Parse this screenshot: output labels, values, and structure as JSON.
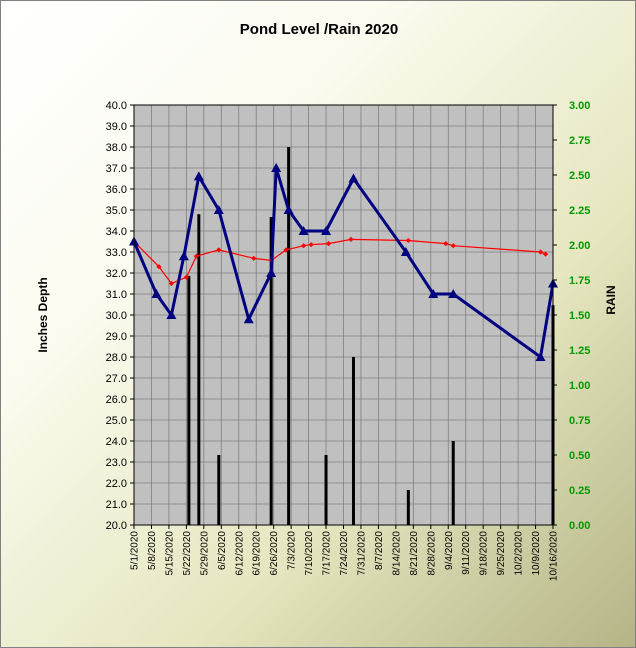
{
  "chart_data": {
    "type": "line",
    "title": "Pond Level /Rain 2020",
    "ylabel": "Inches Depth",
    "y2label": "RAIN",
    "ylim": [
      20.0,
      40.0
    ],
    "y2lim": [
      0.0,
      3.0
    ],
    "grid": true,
    "x_tick_labels": [
      "5/1/2020",
      "5/8/2020",
      "5/15/2020",
      "5/22/2020",
      "5/29/2020",
      "6/5/2020",
      "6/12/2020",
      "6/19/2020",
      "6/26/2020",
      "7/3/2020",
      "7/10/2020",
      "7/17/2020",
      "7/24/2020",
      "7/31/2020",
      "8/7/2020",
      "8/14/2020",
      "8/21/2020",
      "8/28/2020",
      "9/4/2020",
      "9/11/2020",
      "9/18/2020",
      "9/25/2020",
      "10/2/2020",
      "10/9/2020",
      "10/16/2020"
    ],
    "y_tick_labels": [
      "20.0",
      "21.0",
      "22.0",
      "23.0",
      "24.0",
      "25.0",
      "26.0",
      "27.0",
      "28.0",
      "29.0",
      "30.0",
      "31.0",
      "32.0",
      "33.0",
      "34.0",
      "35.0",
      "36.0",
      "37.0",
      "38.0",
      "39.0",
      "40.0"
    ],
    "y2_tick_labels": [
      "0.00",
      "0.25",
      "0.50",
      "0.75",
      "1.00",
      "1.25",
      "1.50",
      "1.75",
      "2.00",
      "2.25",
      "2.50",
      "2.75",
      "3.00"
    ],
    "colors": {
      "plot_bg": "#c0c0c0",
      "grid": "#7f7f7f",
      "pond_level": "#000080",
      "trend": "#ff0000",
      "rain": "#000000",
      "right_axis": "#009900"
    },
    "series": [
      {
        "kind": "line-triangle",
        "color": "#000080",
        "x": [
          "2020-05-01",
          "2020-05-10",
          "2020-05-16",
          "2020-05-21",
          "2020-05-27",
          "2020-06-04",
          "2020-06-16",
          "2020-06-25",
          "2020-06-27",
          "2020-07-02",
          "2020-07-08",
          "2020-07-17",
          "2020-07-28",
          "2020-08-18",
          "2020-08-29",
          "2020-09-06",
          "2020-10-11",
          "2020-10-16"
        ],
        "y": [
          33.5,
          31.0,
          30.0,
          32.8,
          36.6,
          35.0,
          29.8,
          32.0,
          37.0,
          35.0,
          34.0,
          34.0,
          36.5,
          33.0,
          31.0,
          31.0,
          28.0,
          31.5
        ]
      },
      {
        "kind": "line-diamond",
        "color": "#ff0000",
        "x": [
          "2020-05-01",
          "2020-05-11",
          "2020-05-16",
          "2020-05-22",
          "2020-05-26",
          "2020-06-04",
          "2020-06-18",
          "2020-06-25",
          "2020-07-01",
          "2020-07-08",
          "2020-07-11",
          "2020-07-18",
          "2020-07-27",
          "2020-08-19",
          "2020-09-03",
          "2020-09-06",
          "2020-10-11",
          "2020-10-13"
        ],
        "y": [
          33.5,
          32.3,
          31.5,
          31.8,
          32.8,
          33.1,
          32.7,
          32.6,
          33.1,
          33.3,
          33.35,
          33.4,
          33.6,
          33.55,
          33.4,
          33.3,
          33.0,
          32.9
        ]
      },
      {
        "kind": "bar",
        "axis": "right",
        "color": "#000000",
        "x": [
          "2020-05-23",
          "2020-05-27",
          "2020-06-04",
          "2020-06-25",
          "2020-07-02",
          "2020-07-17",
          "2020-07-28",
          "2020-08-19",
          "2020-09-06",
          "2020-10-16"
        ],
        "y": [
          1.78,
          2.22,
          0.5,
          2.2,
          2.7,
          0.5,
          1.2,
          0.25,
          0.6,
          1.57
        ]
      }
    ]
  }
}
